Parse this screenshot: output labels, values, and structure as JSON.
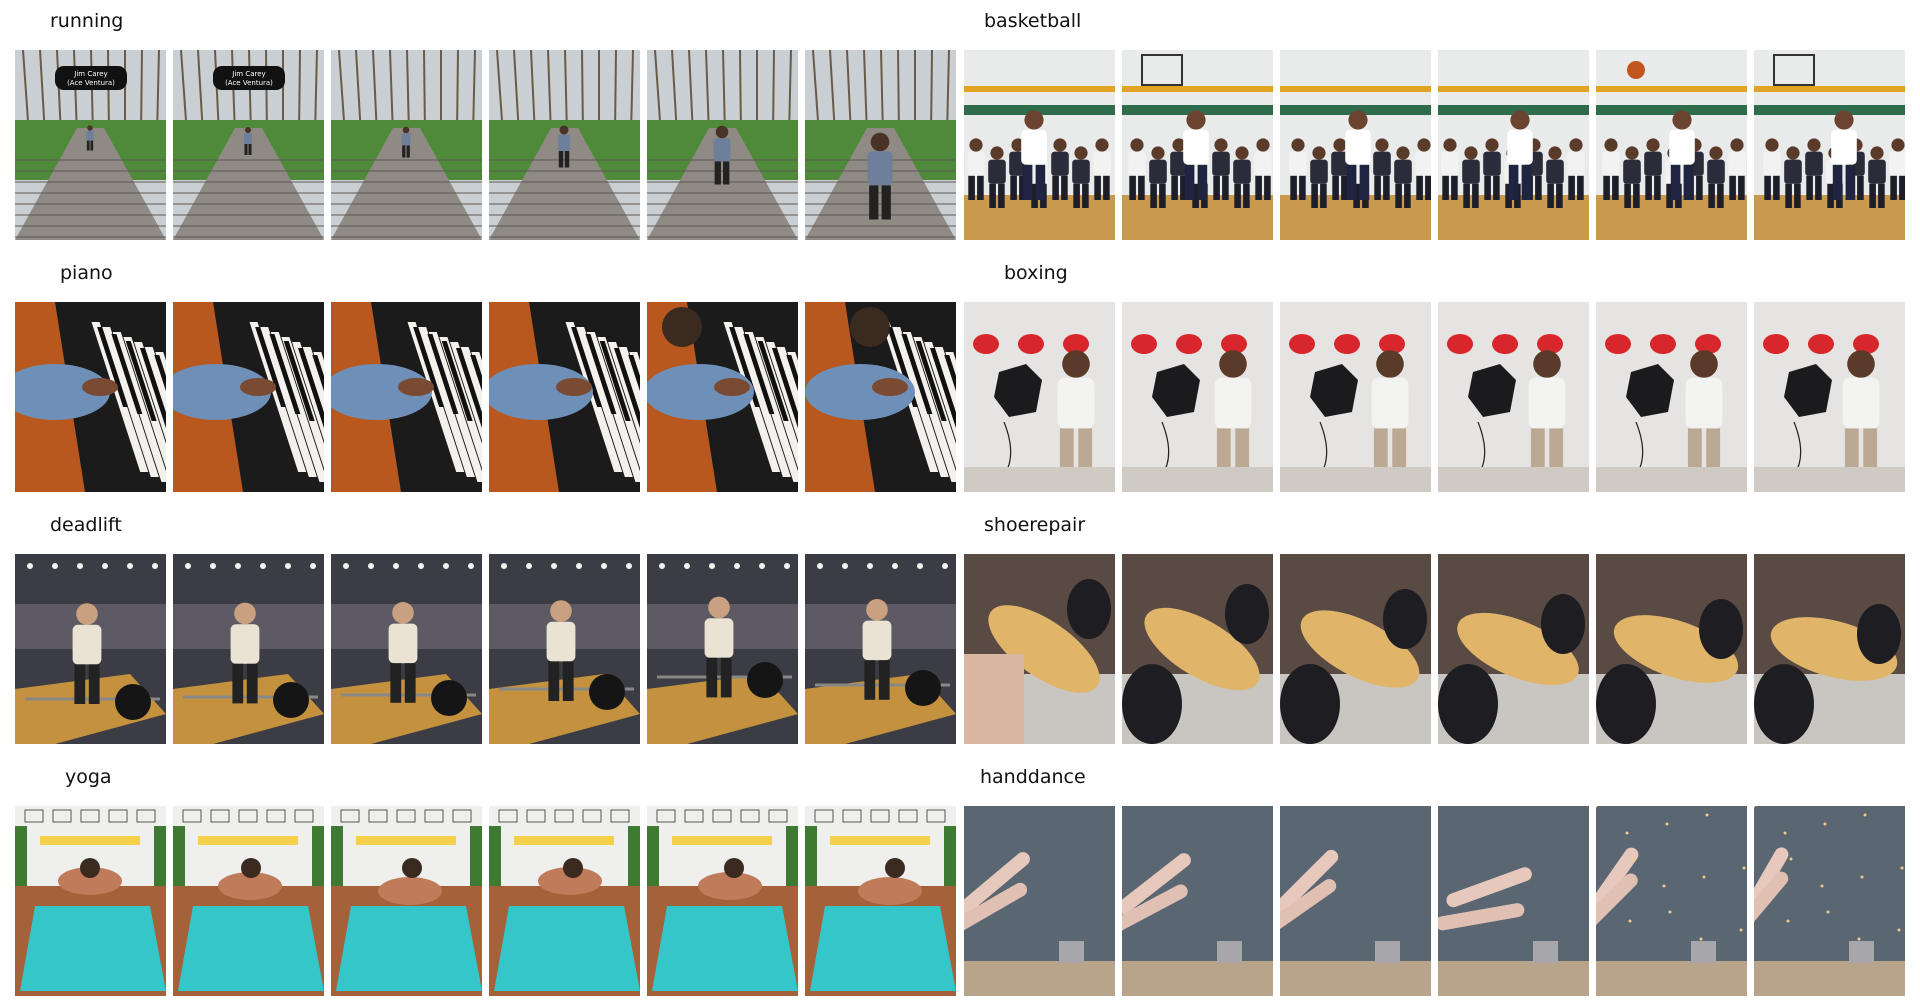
{
  "groups": [
    {
      "label": "running",
      "scene": "running",
      "frames": 6
    },
    {
      "label": "basketball",
      "scene": "basketball",
      "frames": 6
    },
    {
      "label": "piano",
      "scene": "piano",
      "frames": 6
    },
    {
      "label": "boxing",
      "scene": "boxing",
      "frames": 6
    },
    {
      "label": "deadlift",
      "scene": "deadlift",
      "frames": 6
    },
    {
      "label": "shoerepair",
      "scene": "shoerepair",
      "frames": 6
    },
    {
      "label": "yoga",
      "scene": "yoga",
      "frames": 6
    },
    {
      "label": "handdance",
      "scene": "handdance",
      "frames": 6
    }
  ],
  "overlay_text": {
    "running_caption_line1": "Jim Carey",
    "running_caption_line2": "(Ace Ventura)"
  }
}
